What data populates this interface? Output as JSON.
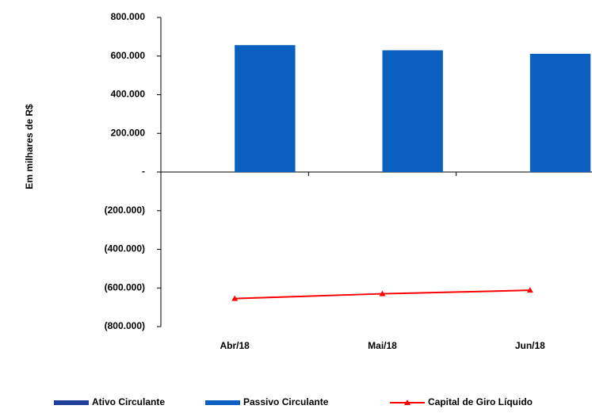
{
  "chart_data": {
    "type": "bar",
    "y_axis_label": "Em milhares de R$",
    "categories": [
      "Abr/18",
      "Mai/18",
      "Jun/18"
    ],
    "series": [
      {
        "name": "Ativo Circulante",
        "type": "bar",
        "color": "#1f3f99",
        "values": [
          0,
          0,
          0
        ]
      },
      {
        "name": "Passivo Circulante",
        "type": "bar",
        "color": "#0a5fc0",
        "values": [
          657000,
          630000,
          612000
        ]
      },
      {
        "name": "Capital de Giro Líquido",
        "type": "line",
        "color": "#ff0000",
        "values": [
          -655000,
          -630000,
          -612000
        ]
      }
    ],
    "ylim": [
      -800000,
      800000
    ],
    "yticks": [
      {
        "value": -800000,
        "label": "(800.000)"
      },
      {
        "value": -600000,
        "label": "(600.000)"
      },
      {
        "value": -400000,
        "label": "(400.000)"
      },
      {
        "value": -200000,
        "label": "(200.000)"
      },
      {
        "value": 0,
        "label": "-"
      },
      {
        "value": 200000,
        "label": "200.000"
      },
      {
        "value": 400000,
        "label": "400.000"
      },
      {
        "value": 600000,
        "label": "600.000"
      },
      {
        "value": 800000,
        "label": "800.000"
      }
    ],
    "legend": "bottom"
  }
}
